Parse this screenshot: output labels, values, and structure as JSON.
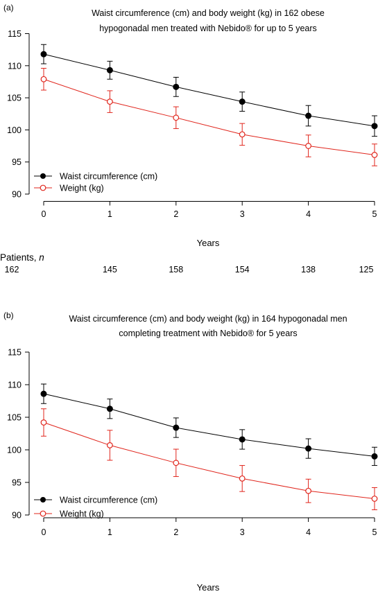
{
  "chart_data": [
    {
      "type": "line",
      "panel_label": "(a)",
      "title": [
        "Waist circumference (cm) and body weight (kg) in 162 obese",
        "hypogonadal men treated with Nebido® for up to 5 years"
      ],
      "xlabel": "Years",
      "ylabel": "",
      "x": [
        0,
        1,
        2,
        3,
        4,
        5
      ],
      "xticks": [
        "0",
        "1",
        "2",
        "3",
        "4",
        "5"
      ],
      "yticks": [
        "90",
        "95",
        "100",
        "105",
        "110",
        "115"
      ],
      "ylim": [
        90,
        115
      ],
      "legend_position": "bottom-left",
      "series": [
        {
          "name": "Waist circumference (cm)",
          "marker": "filled-circle",
          "color": "#000000",
          "values": [
            111.8,
            109.3,
            106.7,
            104.4,
            102.2,
            100.6
          ],
          "error": [
            1.5,
            1.4,
            1.5,
            1.5,
            1.6,
            1.6
          ]
        },
        {
          "name": "Weight (kg)",
          "marker": "open-circle",
          "color": "#e0241b",
          "values": [
            107.9,
            104.4,
            101.9,
            99.3,
            97.5,
            96.1
          ],
          "error": [
            1.7,
            1.7,
            1.7,
            1.7,
            1.7,
            1.7
          ]
        }
      ],
      "patients": {
        "label": "Patients, ",
        "label_italic": "n",
        "values": [
          "162",
          "145",
          "158",
          "154",
          "138",
          "125"
        ]
      }
    },
    {
      "type": "line",
      "panel_label": "(b)",
      "title": [
        "Waist circumference (cm) and body weight (kg) in 164 hypogonadal men",
        "completing treatment with Nebido® for 5 years"
      ],
      "xlabel": "Years",
      "ylabel": "",
      "x": [
        0,
        1,
        2,
        3,
        4,
        5
      ],
      "xticks": [
        "0",
        "1",
        "2",
        "3",
        "4",
        "5"
      ],
      "yticks": [
        "90",
        "95",
        "100",
        "105",
        "110",
        "115"
      ],
      "ylim": [
        90,
        115
      ],
      "legend_position": "bottom-left",
      "series": [
        {
          "name": "Waist circumference (cm)",
          "marker": "filled-circle",
          "color": "#000000",
          "values": [
            108.6,
            106.3,
            103.4,
            101.6,
            100.2,
            99.0
          ],
          "error": [
            1.5,
            1.5,
            1.5,
            1.5,
            1.5,
            1.4
          ]
        },
        {
          "name": "Weight (kg)",
          "marker": "open-circle",
          "color": "#e0241b",
          "values": [
            104.2,
            100.7,
            98.0,
            95.6,
            93.7,
            92.5
          ],
          "error": [
            2.1,
            2.3,
            2.1,
            2.0,
            1.8,
            1.7
          ]
        }
      ]
    }
  ]
}
